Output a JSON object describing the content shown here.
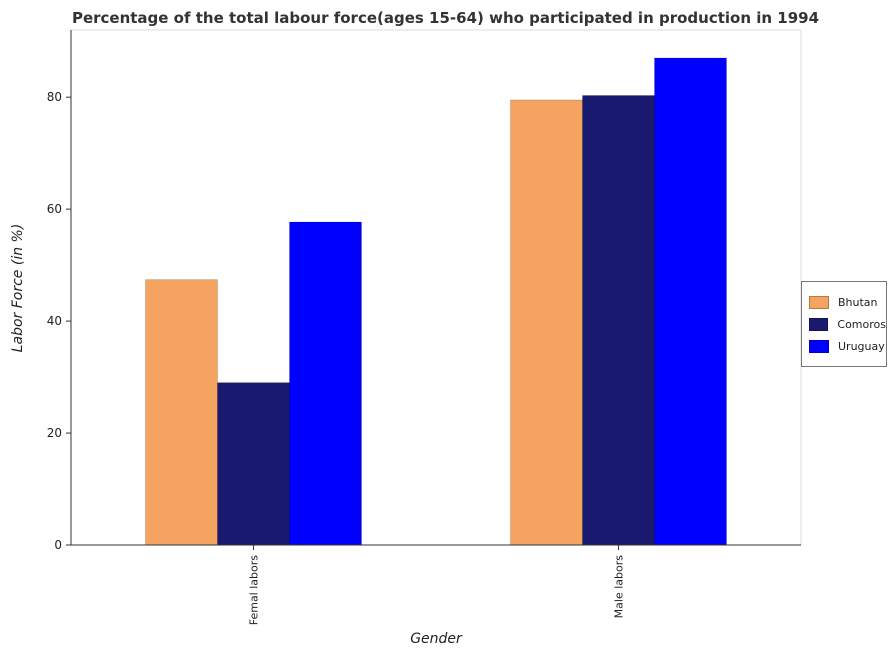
{
  "title": "Percentage of the total labour force(ages 15-64) who participated in production in 1994",
  "chart_data": {
    "type": "bar",
    "title": "Percentage of the total labour force(ages 15-64) who participated in production in 1994",
    "xlabel": "Gender",
    "ylabel": "Labor Force (in %)",
    "categories": [
      "Femal labors",
      "Male labors"
    ],
    "series": [
      {
        "name": "Bhutan",
        "color": "#f4a460",
        "values": [
          47.4,
          79.5
        ]
      },
      {
        "name": "Comoros",
        "color": "#191970",
        "values": [
          29.0,
          80.3
        ]
      },
      {
        "name": "Uruguay",
        "color": "#0000ff",
        "values": [
          57.7,
          87.0
        ]
      }
    ],
    "yticks": [
      0,
      20,
      40,
      60,
      80
    ],
    "ylim": [
      0,
      92
    ],
    "grid": false,
    "legend_position": "right"
  }
}
